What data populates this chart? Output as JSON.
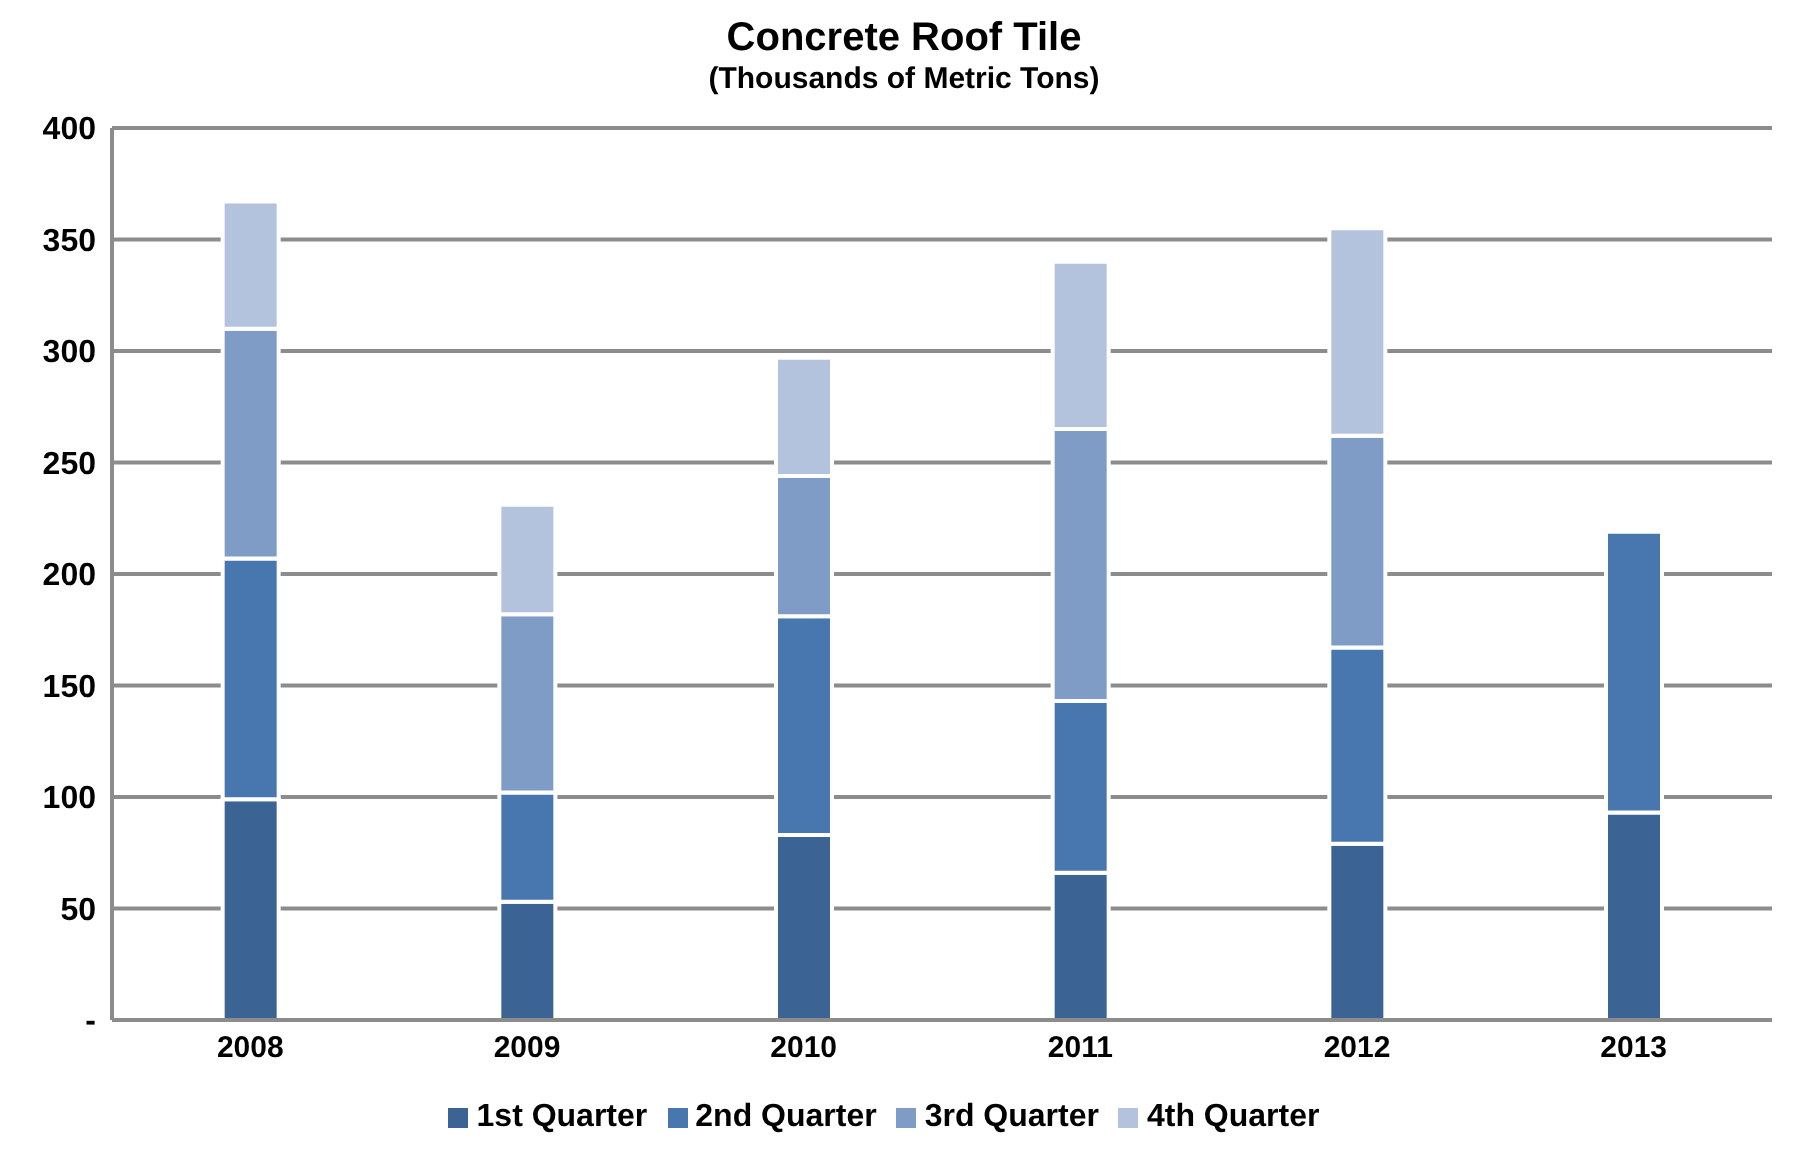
{
  "chart_data": {
    "type": "bar",
    "title": "Concrete Roof Tile",
    "subtitle": "(Thousands of Metric Tons)",
    "stacked": true,
    "categories": [
      "2008",
      "2009",
      "2010",
      "2011",
      "2012",
      "2013"
    ],
    "series": [
      {
        "name": "1st Quarter",
        "color": "#3b6494",
        "values": [
          99,
          53,
          83,
          66,
          79,
          93
        ]
      },
      {
        "name": "2nd Quarter",
        "color": "#4876ae",
        "values": [
          108,
          49,
          98,
          77,
          88,
          126
        ]
      },
      {
        "name": "3rd Quarter",
        "color": "#7f9cc6",
        "values": [
          103,
          80,
          63,
          122,
          95,
          null
        ]
      },
      {
        "name": "4th Quarter",
        "color": "#b4c3dd",
        "values": [
          57,
          49,
          53,
          75,
          93,
          null
        ]
      }
    ],
    "ylim": [
      0,
      400
    ],
    "yticks": [
      {
        "value": 0,
        "label": "-"
      },
      50,
      100,
      150,
      200,
      250,
      300,
      350,
      400
    ],
    "grid": "y",
    "legend": "bottom"
  }
}
